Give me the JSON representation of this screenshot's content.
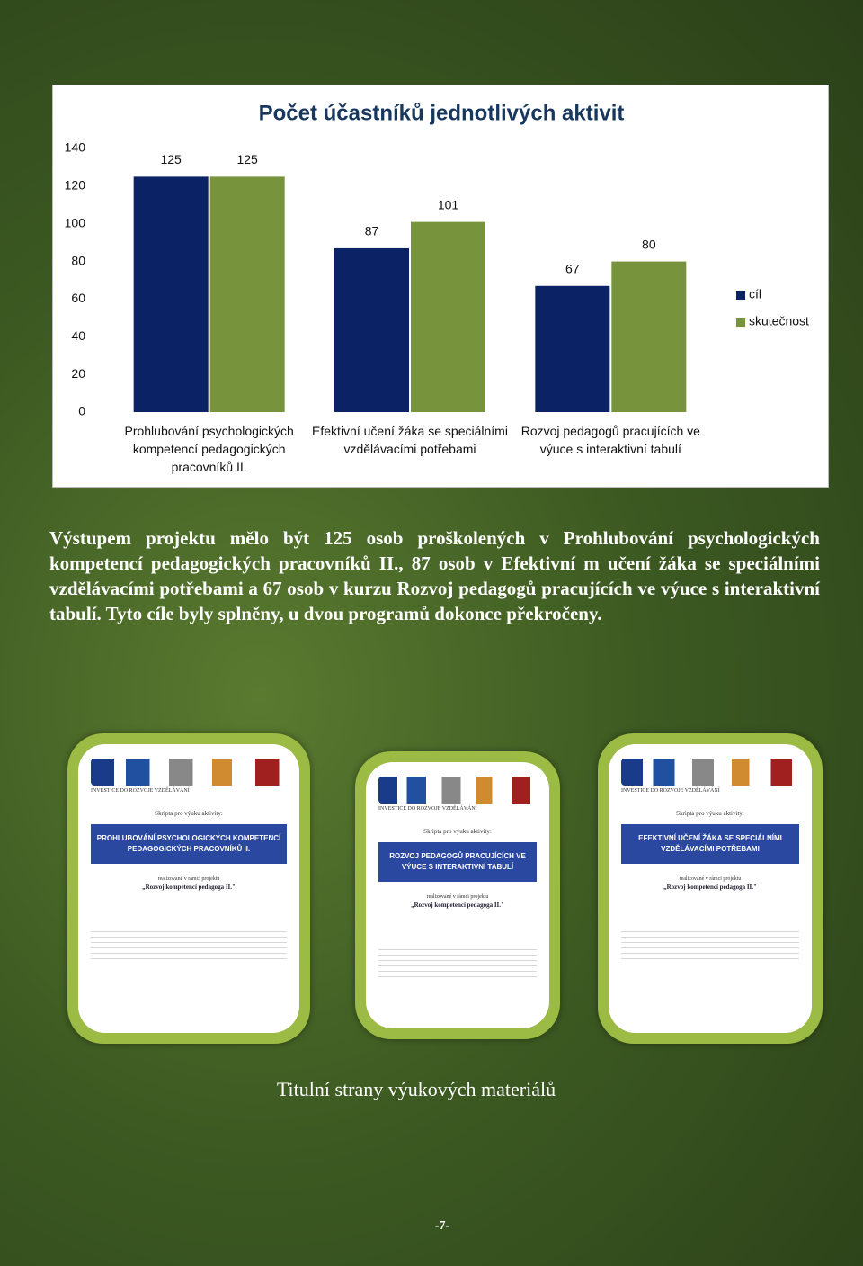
{
  "chart_data": {
    "type": "bar",
    "title": "Počet účastníků jednotlivých aktivit",
    "categories": [
      "Prohlubování psychologických kompetencí pedagogických pracovníků II.",
      "Efektivní učení žáka se speciálními vzdělávacími potřebami",
      "Rozvoj pedagogů pracujících ve výuce s interaktivní tabulí"
    ],
    "series": [
      {
        "name": "cíl",
        "color": "#0b2265",
        "values": [
          125,
          87,
          67
        ]
      },
      {
        "name": "skutečnost",
        "color": "#77933c",
        "values": [
          125,
          101,
          80
        ]
      }
    ],
    "ylim": [
      0,
      140
    ],
    "yticks": [
      0,
      20,
      40,
      60,
      80,
      100,
      120,
      140
    ],
    "grid": false,
    "legend": "right"
  },
  "paragraph": "Výstupem projektu mělo být 125 osob proškolených v Prohlubování psychologických kompetencí pedagogických pracovníků II., 87 osob v Efektivní m učení žáka se speciálními vzdělávacími potřebami a 67 osob v kurzu Rozvoj pedagogů pracujících ve výuce s interaktivní tabulí. Tyto cíle byly splněny, u dvou programů dokonce překročeny.",
  "covers": [
    {
      "banner": "INVESTICE DO ROZVOJE VZDĚLÁVÁNÍ",
      "heading": "Skripta pro výuku aktivity:",
      "title": "PROHLUBOVÁNÍ PSYCHOLOGICKÝCH KOMPETENCÍ PEDAGOGICKÝCH PRACOVNÍKŮ II.",
      "project_intro": "realizované v rámci projektu",
      "project": "„Rozvoj kompetencí pedagoga II.\""
    },
    {
      "banner": "INVESTICE DO ROZVOJE VZDĚLÁVÁNÍ",
      "heading": "Skripta pro výuku aktivity:",
      "title": "ROZVOJ PEDAGOGŮ PRACUJÍCÍCH VE VÝUCE S INTERAKTIVNÍ TABULÍ",
      "project_intro": "realizované v rámci projektu",
      "project": "„Rozvoj kompetencí pedagoga II.\""
    },
    {
      "banner": "INVESTICE DO ROZVOJE VZDĚLÁVÁNÍ",
      "heading": "Skripta pro výuku aktivity:",
      "title": "EFEKTIVNÍ UČENÍ ŽÁKA SE SPECIÁLNÍMI VZDĚLÁVACÍMI POTŘEBAMI",
      "project_intro": "realizované v rámci projektu",
      "project": "„Rozvoj kompetencí pedagoga II.\""
    }
  ],
  "caption": "Titulní strany výukových materiálů",
  "page_number": "-7-"
}
